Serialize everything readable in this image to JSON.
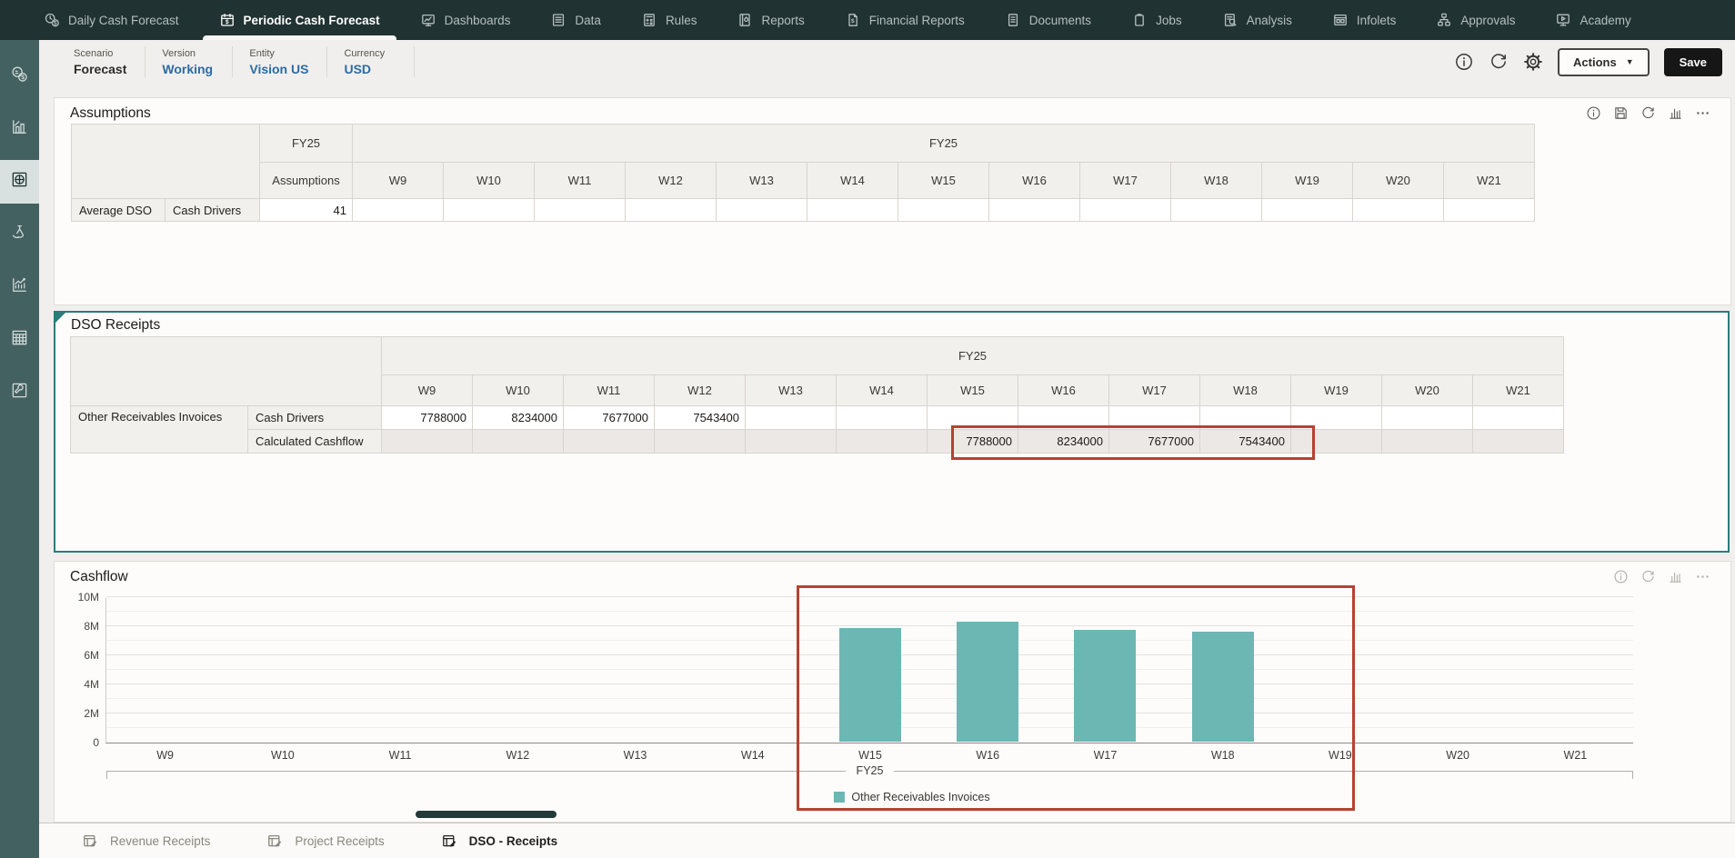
{
  "nav": {
    "tabs": [
      {
        "label": "Daily Cash Forecast"
      },
      {
        "label": "Periodic Cash Forecast"
      },
      {
        "label": "Dashboards"
      },
      {
        "label": "Data"
      },
      {
        "label": "Rules"
      },
      {
        "label": "Reports"
      },
      {
        "label": "Financial Reports"
      },
      {
        "label": "Documents"
      },
      {
        "label": "Jobs"
      },
      {
        "label": "Analysis"
      },
      {
        "label": "Infolets"
      },
      {
        "label": "Approvals"
      },
      {
        "label": "Academy"
      }
    ],
    "active_tab": "Periodic Cash Forecast"
  },
  "pov": {
    "scenario_label": "Scenario",
    "scenario_value": "Forecast",
    "version_label": "Version",
    "version_value": "Working",
    "entity_label": "Entity",
    "entity_value": "Vision US",
    "currency_label": "Currency",
    "currency_value": "USD",
    "actions_label": "Actions",
    "save_label": "Save"
  },
  "assumptions": {
    "title": "Assumptions",
    "year": "FY25",
    "col_header": "Assumptions",
    "weeks": [
      "W9",
      "W10",
      "W11",
      "W12",
      "W13",
      "W14",
      "W15",
      "W16",
      "W17",
      "W18",
      "W19",
      "W20",
      "W21"
    ],
    "row": {
      "dim": "Average DSO",
      "measure": "Cash Drivers",
      "value": "41"
    }
  },
  "dso": {
    "title": "DSO Receipts",
    "year": "FY25",
    "weeks": [
      "W9",
      "W10",
      "W11",
      "W12",
      "W13",
      "W14",
      "W15",
      "W16",
      "W17",
      "W18",
      "W19",
      "W20",
      "W21"
    ],
    "row_group": "Other Receivables Invoices",
    "rows": [
      {
        "label": "Cash Drivers",
        "cells": [
          "7788000",
          "8234000",
          "7677000",
          "7543400",
          "",
          "",
          "",
          "",
          "",
          "",
          "",
          "",
          ""
        ]
      },
      {
        "label": "Calculated Cashflow",
        "cells": [
          "",
          "",
          "",
          "",
          "",
          "",
          "7788000",
          "8234000",
          "7677000",
          "7543400",
          "",
          "",
          ""
        ]
      }
    ]
  },
  "cashflow": {
    "title": "Cashflow"
  },
  "chart_data": {
    "type": "bar",
    "title": "Cashflow",
    "categories": [
      "W9",
      "W10",
      "W11",
      "W12",
      "W13",
      "W14",
      "W15",
      "W16",
      "W17",
      "W18",
      "W19",
      "W20",
      "W21"
    ],
    "series": [
      {
        "name": "Other Receivables Invoices",
        "values": [
          null,
          null,
          null,
          null,
          null,
          null,
          7788000,
          8234000,
          7677000,
          7543400,
          null,
          null,
          null
        ],
        "color": "#6cb7b3"
      }
    ],
    "xlabel": "",
    "ylabel": "",
    "ylim": [
      0,
      10000000
    ],
    "yticks": [
      {
        "value": 0,
        "label": "0"
      },
      {
        "value": 2000000,
        "label": "2M"
      },
      {
        "value": 4000000,
        "label": "4M"
      },
      {
        "value": 6000000,
        "label": "6M"
      },
      {
        "value": 8000000,
        "label": "8M"
      },
      {
        "value": 10000000,
        "label": "10M"
      }
    ],
    "x_group_label": "FY25",
    "legend_position": "bottom",
    "grid": true
  },
  "annotations": {
    "highlight_color": "#b5432e",
    "grid_highlight_range": "Calculated Cashflow W15-W18",
    "chart_highlight_range": "W15-W18"
  },
  "bottom_tabs": [
    {
      "label": "Revenue Receipts"
    },
    {
      "label": "Project Receipts"
    },
    {
      "label": "DSO - Receipts"
    }
  ],
  "bottom_active_tab": "DSO - Receipts",
  "icons": {
    "pov_controls": [
      "info",
      "refresh",
      "settings"
    ],
    "assumptions_panel": [
      "info",
      "save",
      "refresh",
      "chart",
      "more"
    ],
    "cashflow_panel": [
      "info",
      "refresh",
      "chart",
      "more"
    ]
  }
}
